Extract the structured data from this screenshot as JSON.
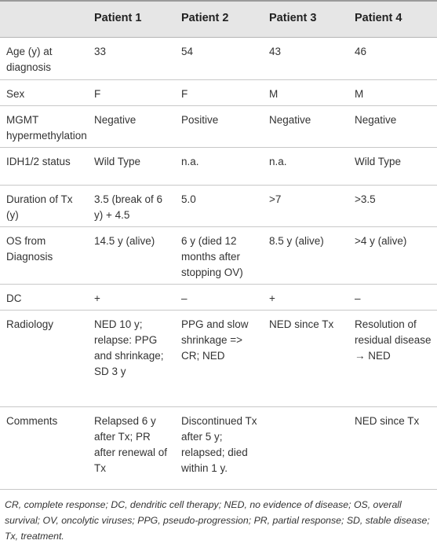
{
  "table": {
    "header": [
      "Patient 1",
      "Patient 2",
      "Patient 3",
      "Patient 4"
    ],
    "rows": [
      {
        "label": "Age (y) at diagnosis",
        "cells": [
          "33",
          "54",
          "43",
          "46"
        ]
      },
      {
        "label": "Sex",
        "cells": [
          "F",
          "F",
          "M",
          "M"
        ]
      },
      {
        "label": "MGMT hypermethylation",
        "cells": [
          "Negative",
          "Positive",
          "Negative",
          "Negative"
        ]
      },
      {
        "label": "IDH1/2 status",
        "cells": [
          "Wild Type",
          "n.a.",
          "n.a.",
          "Wild Type"
        ]
      },
      {
        "label": "Duration of Tx (y)",
        "cells": [
          "3.5 (break of 6 y) + 4.5",
          "5.0",
          ">7",
          ">3.5"
        ]
      },
      {
        "label": "OS from Diagnosis",
        "cells": [
          "14.5 y (alive)",
          "6 y (died 12 months after stopping OV)",
          "8.5 y (alive)",
          ">4 y (alive)"
        ]
      },
      {
        "label": "DC",
        "cells": [
          "+",
          "–",
          "+",
          "–"
        ]
      },
      {
        "label": "Radiology",
        "cells": [
          "NED 10 y; relapse: PPG and shrinkage; SD 3 y",
          "PPG and slow shrinkage => CR; NED",
          "NED since Tx",
          "Resolution of residual disease → NED"
        ]
      },
      {
        "label": "Comments",
        "cells": [
          "Relapsed 6 y after Tx; PR after renewal of Tx",
          "Discontinued Tx after 5 y; relapsed; died within 1 y.",
          "",
          "NED since Tx"
        ]
      }
    ]
  },
  "footnote": "CR, complete response; DC, dendritic cell therapy; NED, no evidence of disease; OS, overall survival; OV, oncolytic viruses; PPG, pseudo-progression; PR, partial response; SD, stable disease; Tx, treatment."
}
